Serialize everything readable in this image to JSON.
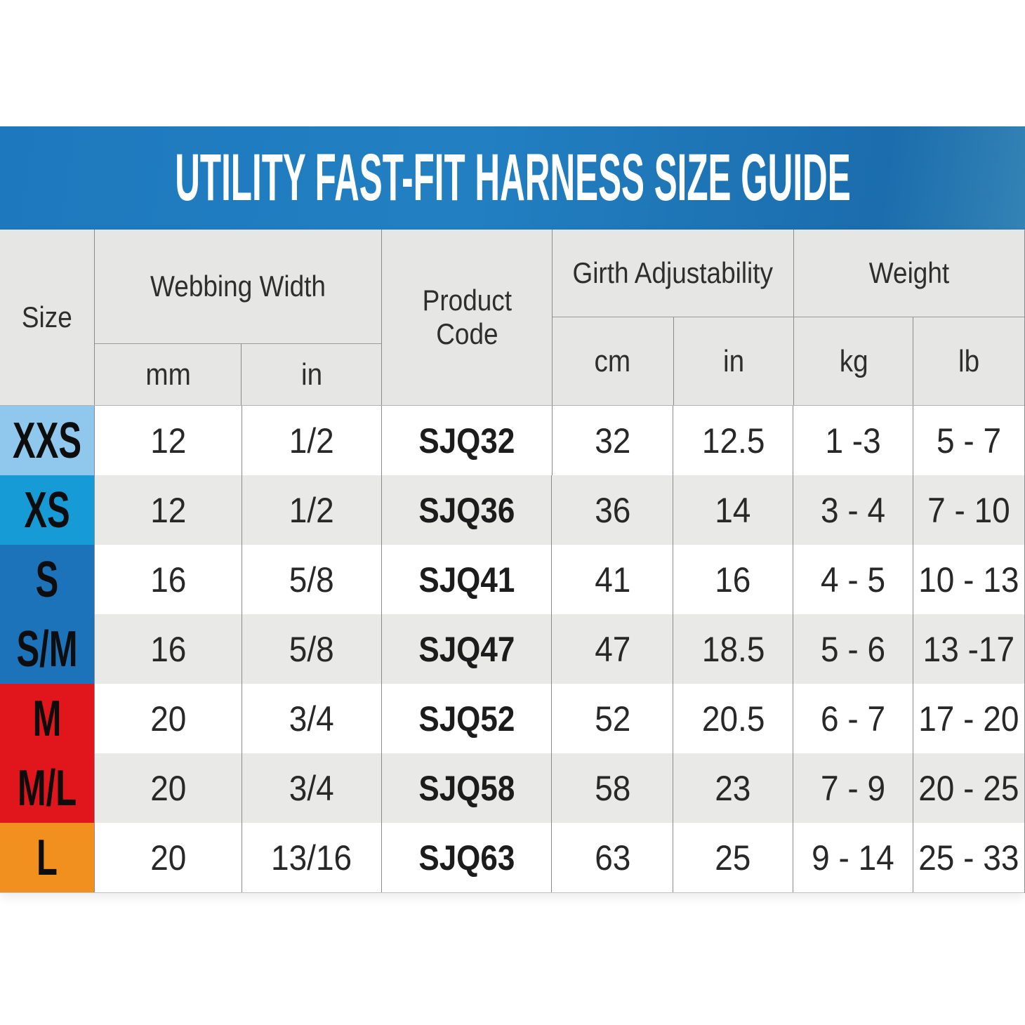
{
  "title": "UTILITY FAST-FIT HARNESS SIZE GUIDE",
  "colors": {
    "band_left": "#1e78bd",
    "band_mid": "#2280c2",
    "band_right": "#1b6dad",
    "band_edge": "#3383b5",
    "header_bg": "#e6e6e4",
    "row_alt_bg": "#e9e9e7",
    "grid": "#8a8a8a",
    "size_xxs": "#8fc8ec",
    "size_xs": "#169bd7",
    "size_s": "#1d73b9",
    "size_m": "#e0161c",
    "size_l": "#f1901e"
  },
  "table": {
    "header": {
      "size": "Size",
      "webbing": "Webbing Width",
      "webbing_mm": "mm",
      "webbing_in": "in",
      "product": "Product\nCode",
      "girth": "Girth Adjustability",
      "girth_cm": "cm",
      "girth_in": "in",
      "weight": "Weight",
      "weight_kg": "kg",
      "weight_lb": "lb"
    },
    "rows": [
      {
        "size": "XXS",
        "color": "#8fc8ec",
        "mm": "12",
        "in": "1/2",
        "code": "SJQ32",
        "cm": "32",
        "girth_in": "12.5",
        "kg": "1 -3",
        "lb": "5 - 7"
      },
      {
        "size": "XS",
        "color": "#169bd7",
        "mm": "12",
        "in": "1/2",
        "code": "SJQ36",
        "cm": "36",
        "girth_in": "14",
        "kg": "3 - 4",
        "lb": "7 - 10"
      },
      {
        "size": "S",
        "color": "#1d73b9",
        "mm": "16",
        "in": "5/8",
        "code": "SJQ41",
        "cm": "41",
        "girth_in": "16",
        "kg": "4 - 5",
        "lb": "10 - 13"
      },
      {
        "size": "S/M",
        "color": "#1d73b9",
        "mm": "16",
        "in": "5/8",
        "code": "SJQ47",
        "cm": "47",
        "girth_in": "18.5",
        "kg": "5 - 6",
        "lb": "13 -17"
      },
      {
        "size": "M",
        "color": "#e0161c",
        "mm": "20",
        "in": "3/4",
        "code": "SJQ52",
        "cm": "52",
        "girth_in": "20.5",
        "kg": "6 - 7",
        "lb": "17 - 20"
      },
      {
        "size": "M/L",
        "color": "#e0161c",
        "mm": "20",
        "in": "3/4",
        "code": "SJQ58",
        "cm": "58",
        "girth_in": "23",
        "kg": "7 - 9",
        "lb": "20 - 25"
      },
      {
        "size": "L",
        "color": "#f1901e",
        "mm": "20",
        "in": "13/16",
        "code": "SJQ63",
        "cm": "63",
        "girth_in": "25",
        "kg": "9 - 14",
        "lb": "25 - 33"
      }
    ]
  },
  "chart_data": {
    "type": "table",
    "title": "UTILITY FAST-FIT HARNESS SIZE GUIDE",
    "columns": [
      "Size",
      "Webbing Width (mm)",
      "Webbing Width (in)",
      "Product Code",
      "Girth Adjustability (cm)",
      "Girth Adjustability (in)",
      "Weight (kg)",
      "Weight (lb)"
    ],
    "rows": [
      [
        "XXS",
        "12",
        "1/2",
        "SJQ32",
        "32",
        "12.5",
        "1 -3",
        "5 - 7"
      ],
      [
        "XS",
        "12",
        "1/2",
        "SJQ36",
        "36",
        "14",
        "3 - 4",
        "7 - 10"
      ],
      [
        "S",
        "16",
        "5/8",
        "SJQ41",
        "41",
        "16",
        "4 - 5",
        "10 - 13"
      ],
      [
        "S/M",
        "16",
        "5/8",
        "SJQ47",
        "47",
        "18.5",
        "5 - 6",
        "13 -17"
      ],
      [
        "M",
        "20",
        "3/4",
        "SJQ52",
        "52",
        "20.5",
        "6 - 7",
        "17 - 20"
      ],
      [
        "M/L",
        "20",
        "3/4",
        "SJQ58",
        "58",
        "23",
        "7 - 9",
        "20 - 25"
      ],
      [
        "L",
        "20",
        "13/16",
        "SJQ63",
        "63",
        "25",
        "9 - 14",
        "25 - 33"
      ]
    ]
  }
}
